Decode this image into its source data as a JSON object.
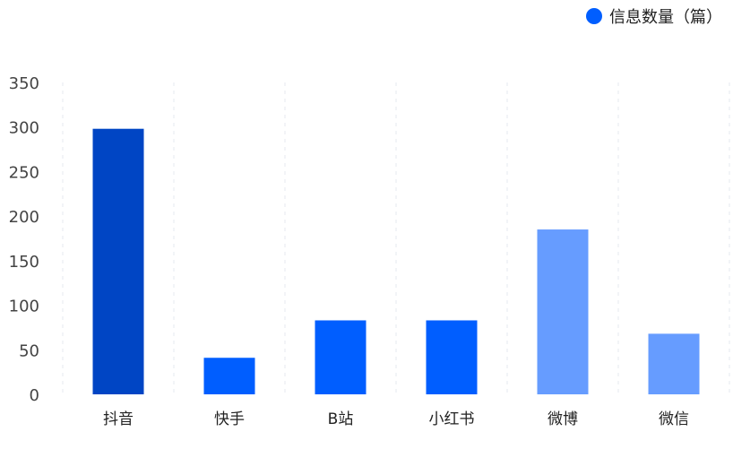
{
  "chart_data": {
    "type": "bar",
    "categories": [
      "抖音",
      "快手",
      "B站",
      "小红书",
      "微博",
      "微信"
    ],
    "series": [
      {
        "name": "信息数量（篇）",
        "values": [
          298,
          41,
          83,
          83,
          185,
          68
        ]
      }
    ],
    "bar_colors": [
      "#0045C4",
      "#005EFF",
      "#005EFF",
      "#005EFF",
      "#669CFF",
      "#669CFF"
    ],
    "legend_color": "#005EFF",
    "y_ticks": [
      "0",
      "50",
      "100",
      "150",
      "200",
      "250",
      "300",
      "350"
    ],
    "ylim": [
      0,
      350
    ],
    "grid": "vertical-dashed",
    "legend_position": "top-right",
    "title": "",
    "xlabel": "",
    "ylabel": ""
  }
}
